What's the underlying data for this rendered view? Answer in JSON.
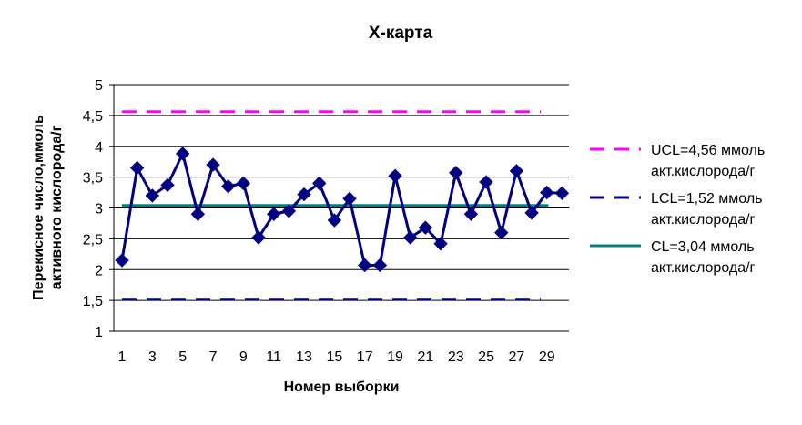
{
  "chart_data": {
    "type": "line",
    "title": "X-карта",
    "xlabel": "Номер выборки",
    "ylabel_lines": [
      "Перекисное число,ммоль",
      "активного кислорода/г"
    ],
    "ylim": [
      1,
      5
    ],
    "yticks": [
      1,
      1.5,
      2,
      2.5,
      3,
      3.5,
      4,
      4.5,
      5
    ],
    "ytick_labels": [
      "1",
      "1,5",
      "2",
      "2,5",
      "3",
      "3,5",
      "4",
      "4,5",
      "5"
    ],
    "xlim": [
      1,
      30
    ],
    "xtick_labels": [
      "1",
      "3",
      "5",
      "7",
      "9",
      "11",
      "13",
      "15",
      "17",
      "19",
      "21",
      "23",
      "25",
      "27",
      "29"
    ],
    "grid": "horizontal",
    "legend_position": "right",
    "x": [
      1,
      2,
      3,
      4,
      5,
      6,
      7,
      8,
      9,
      10,
      11,
      12,
      13,
      14,
      15,
      16,
      17,
      18,
      19,
      20,
      21,
      22,
      23,
      24,
      25,
      26,
      27,
      28,
      29,
      30
    ],
    "series": [
      {
        "role": "data",
        "color": "#000080",
        "marker": "diamond",
        "values": [
          2.15,
          3.65,
          3.2,
          3.37,
          3.88,
          2.9,
          3.7,
          3.35,
          3.4,
          2.52,
          2.9,
          2.95,
          3.22,
          3.4,
          2.8,
          3.15,
          2.07,
          2.07,
          3.52,
          2.52,
          2.68,
          2.42,
          3.57,
          2.9,
          3.42,
          2.6,
          3.6,
          2.92,
          3.25,
          3.24
        ]
      }
    ],
    "control_lines": [
      {
        "role": "ucl",
        "value": 4.56,
        "color": "#ff00ff",
        "style": "dashed",
        "legend": [
          "UCL=4,56 ммоль",
          "акт.кислорода/г"
        ]
      },
      {
        "role": "lcl",
        "value": 1.52,
        "color": "#000080",
        "style": "dashed",
        "legend": [
          "LCL=1,52 ммоль",
          "акт.кислорода/г"
        ]
      },
      {
        "role": "cl",
        "value": 3.04,
        "color": "#008080",
        "style": "solid",
        "legend": [
          "CL=3,04 ммоль",
          "акт.кислорода/г"
        ]
      }
    ]
  }
}
